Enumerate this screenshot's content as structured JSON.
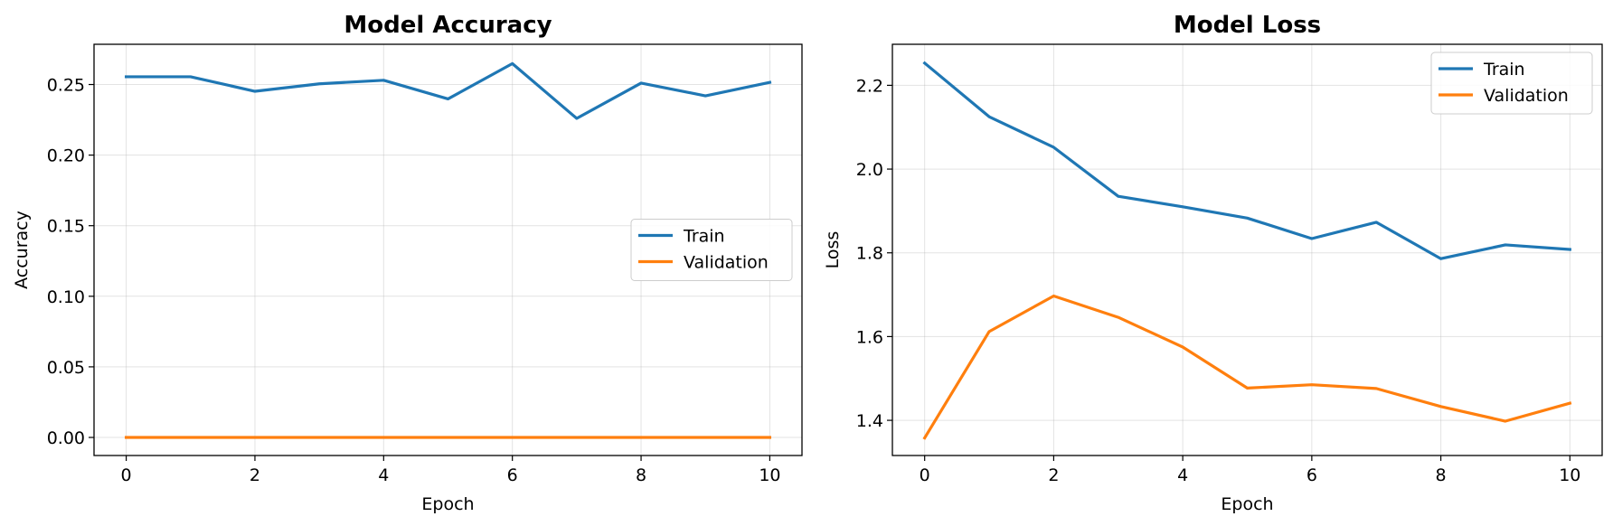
{
  "chart_data": [
    {
      "type": "line",
      "title": "Model Accuracy",
      "xlabel": "Epoch",
      "ylabel": "Accuracy",
      "xlim": [
        -0.5,
        10.5
      ],
      "ylim": [
        -0.0128,
        0.2785
      ],
      "xticks": [
        0,
        2,
        4,
        6,
        8,
        10
      ],
      "xtick_labels": [
        "0",
        "2",
        "4",
        "6",
        "8",
        "10"
      ],
      "yticks": [
        0.0,
        0.05,
        0.1,
        0.15,
        0.2,
        0.25
      ],
      "ytick_labels": [
        "0.00",
        "0.05",
        "0.10",
        "0.15",
        "0.20",
        "0.25"
      ],
      "grid": true,
      "legend_position": "center-right",
      "x": [
        0,
        1,
        2,
        3,
        4,
        5,
        6,
        7,
        8,
        9,
        10
      ],
      "series": [
        {
          "name": "Train",
          "color": "#1f77b4",
          "values": [
            0.2555,
            0.2555,
            0.2452,
            0.2505,
            0.253,
            0.2398,
            0.2648,
            0.226,
            0.251,
            0.242,
            0.2515
          ]
        },
        {
          "name": "Validation",
          "color": "#ff7f0e",
          "values": [
            0,
            0,
            0,
            0,
            0,
            0,
            0,
            0,
            0,
            0,
            0
          ]
        }
      ]
    },
    {
      "type": "line",
      "title": "Model Loss",
      "xlabel": "Epoch",
      "ylabel": "Loss",
      "xlim": [
        -0.5,
        10.5
      ],
      "ylim": [
        1.316,
        2.298
      ],
      "xticks": [
        0,
        2,
        4,
        6,
        8,
        10
      ],
      "xtick_labels": [
        "0",
        "2",
        "4",
        "6",
        "8",
        "10"
      ],
      "yticks": [
        1.4,
        1.6,
        1.8,
        2.0,
        2.2
      ],
      "ytick_labels": [
        "1.4",
        "1.6",
        "1.8",
        "2.0",
        "2.2"
      ],
      "grid": true,
      "legend_position": "top-right",
      "x": [
        0,
        1,
        2,
        3,
        4,
        5,
        6,
        7,
        8,
        9,
        10
      ],
      "series": [
        {
          "name": "Train",
          "color": "#1f77b4",
          "values": [
            2.253,
            2.125,
            2.052,
            1.935,
            1.91,
            1.883,
            1.834,
            1.873,
            1.786,
            1.819,
            1.808
          ]
        },
        {
          "name": "Validation",
          "color": "#ff7f0e",
          "values": [
            1.358,
            1.612,
            1.697,
            1.646,
            1.575,
            1.477,
            1.485,
            1.476,
            1.433,
            1.398,
            1.441
          ]
        }
      ]
    }
  ]
}
